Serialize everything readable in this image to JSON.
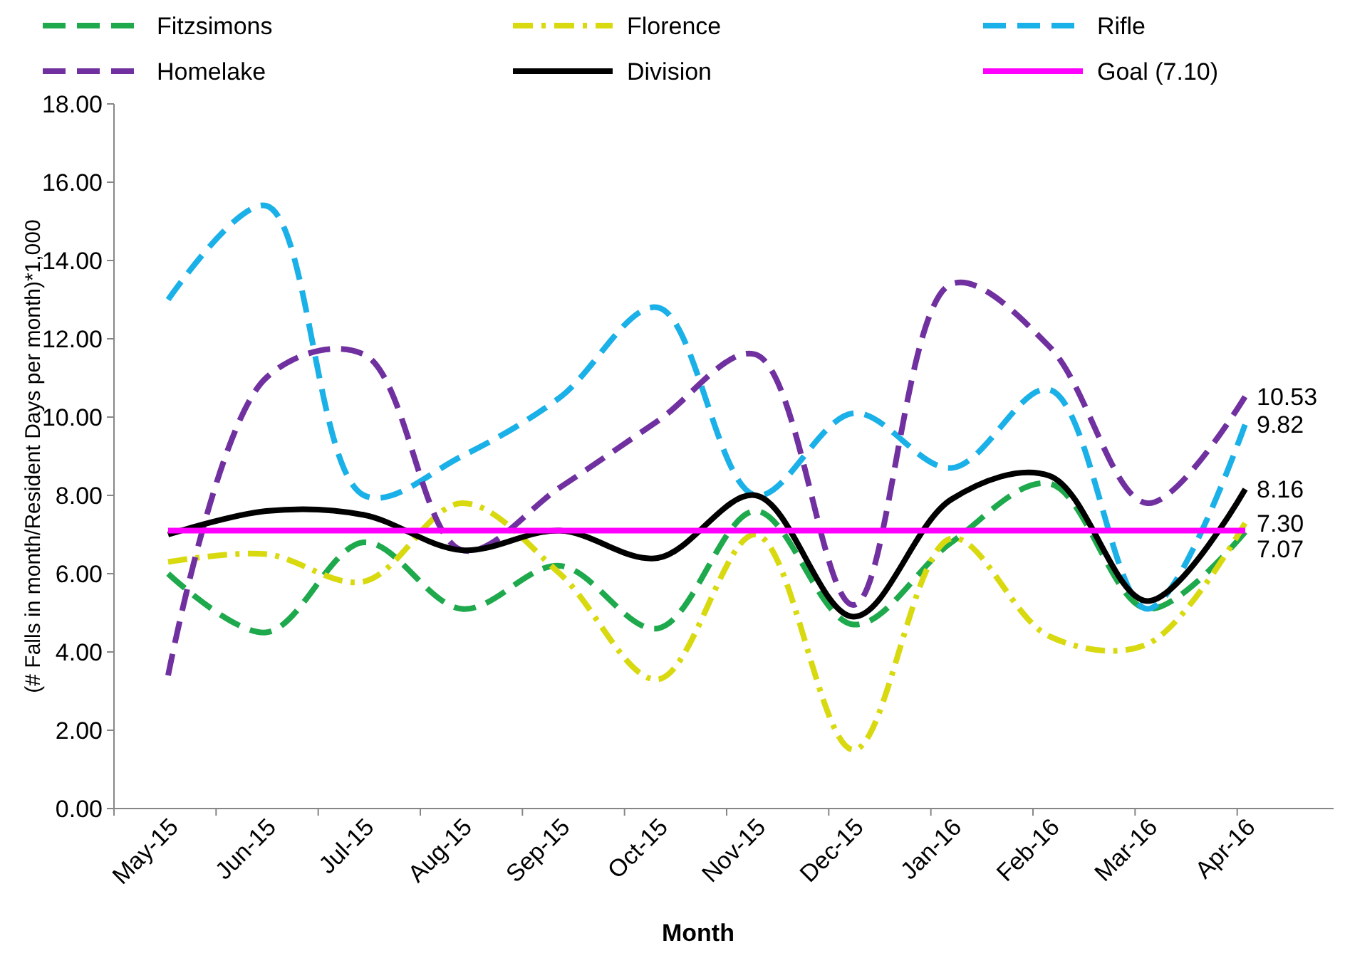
{
  "chart_data": {
    "type": "line",
    "xlabel": "Month",
    "ylabel": "(# Falls in month/Resident Days per month)*1,000",
    "categories": [
      "May-15",
      "Jun-15",
      "Jul-15",
      "Aug-15",
      "Sep-15",
      "Oct-15",
      "Nov-15",
      "Dec-15",
      "Jan-16",
      "Feb-16",
      "Mar-16",
      "Apr-16"
    ],
    "ylim": [
      0,
      18
    ],
    "yticks": [
      {
        "value": 0,
        "label": "0.00"
      },
      {
        "value": 2,
        "label": "2.00"
      },
      {
        "value": 4,
        "label": "4.00"
      },
      {
        "value": 6,
        "label": "6.00"
      },
      {
        "value": 8,
        "label": "8.00"
      },
      {
        "value": 10,
        "label": "10.00"
      },
      {
        "value": 12,
        "label": "12.00"
      },
      {
        "value": 14,
        "label": "14.00"
      },
      {
        "value": 16,
        "label": "16.00"
      },
      {
        "value": 18,
        "label": "18.00"
      }
    ],
    "grid": false,
    "legend": "top",
    "marker": "none",
    "series": [
      {
        "name": "Fitzsimons",
        "color": "#1ea94c",
        "line_style": "dashed",
        "values": [
          6.0,
          4.5,
          6.8,
          5.1,
          6.2,
          4.6,
          7.6,
          4.7,
          6.8,
          8.3,
          5.1,
          7.07
        ],
        "value_labels": [
          null,
          null,
          null,
          null,
          null,
          null,
          null,
          null,
          null,
          null,
          null,
          "7.07"
        ]
      },
      {
        "name": "Florence",
        "color": "#d9d90f",
        "line_style": "dashdot",
        "values": [
          6.3,
          6.5,
          5.8,
          7.8,
          6.0,
          3.3,
          7.0,
          1.5,
          6.9,
          4.4,
          4.2,
          7.3
        ],
        "value_labels": [
          null,
          null,
          null,
          null,
          null,
          null,
          null,
          null,
          null,
          null,
          null,
          "7.30"
        ]
      },
      {
        "name": "Rifle",
        "color": "#1ab0e8",
        "line_style": "dashed",
        "values": [
          13.0,
          15.4,
          8.0,
          9.0,
          10.5,
          12.8,
          8.0,
          10.1,
          8.7,
          10.7,
          5.1,
          9.82
        ],
        "value_labels": [
          null,
          null,
          null,
          null,
          null,
          null,
          null,
          null,
          null,
          null,
          null,
          "9.82"
        ]
      },
      {
        "name": "Homelake",
        "color": "#7030a0",
        "line_style": "dashed",
        "values": [
          3.4,
          11.0,
          11.6,
          6.6,
          8.2,
          9.9,
          11.6,
          5.2,
          13.4,
          11.8,
          7.8,
          10.53
        ],
        "value_labels": [
          null,
          null,
          null,
          null,
          null,
          null,
          null,
          null,
          null,
          null,
          null,
          "10.53"
        ]
      },
      {
        "name": "Division",
        "color": "#000000",
        "line_style": "solid",
        "values": [
          7.0,
          7.6,
          7.5,
          6.6,
          7.1,
          6.4,
          8.0,
          4.9,
          7.9,
          8.5,
          5.3,
          8.16
        ],
        "value_labels": [
          null,
          null,
          null,
          null,
          null,
          null,
          null,
          null,
          null,
          null,
          null,
          "8.16"
        ]
      },
      {
        "name": "Goal (7.10)",
        "color": "#ff00ff",
        "line_style": "solid",
        "values": [
          7.1,
          7.1,
          7.1,
          7.1,
          7.1,
          7.1,
          7.1,
          7.1,
          7.1,
          7.1,
          7.1,
          7.1
        ]
      }
    ]
  }
}
